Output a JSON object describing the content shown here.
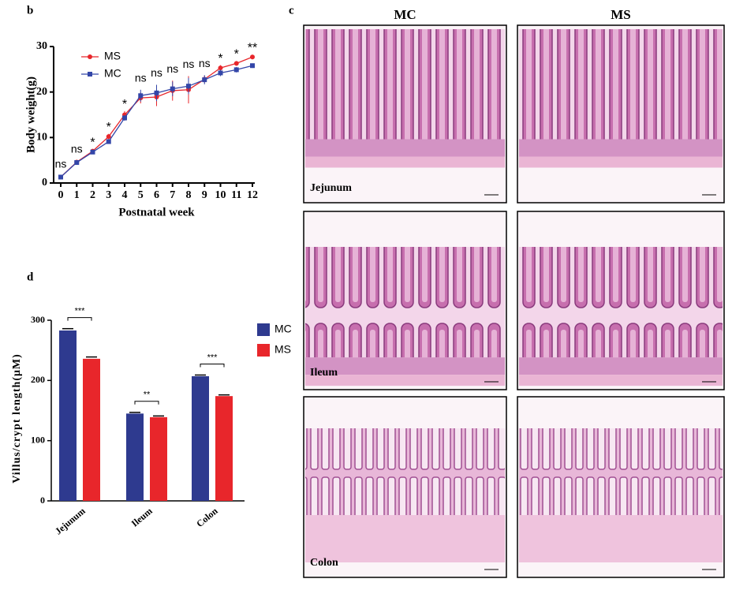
{
  "panel_labels": [
    "b",
    "c",
    "d"
  ],
  "histology": {
    "columns": [
      "MC",
      "MS"
    ],
    "rows": [
      "Jejunum",
      "Ileum",
      "Colon"
    ]
  },
  "chart_data": [
    {
      "type": "line",
      "xlabel": "Postnatal week",
      "ylabel": "Body weight(g)",
      "x": [
        0,
        1,
        2,
        3,
        4,
        5,
        6,
        7,
        8,
        9,
        10,
        11,
        12
      ],
      "xlim": [
        0,
        12
      ],
      "xticks": [
        0,
        1,
        2,
        3,
        4,
        5,
        6,
        7,
        8,
        9,
        10,
        11,
        12
      ],
      "ylim": [
        0,
        30
      ],
      "yticks": [
        0,
        10,
        20,
        30
      ],
      "legend": "upper left",
      "series": [
        {
          "name": "MS",
          "color": "#e8262b",
          "marker": "circle",
          "values": [
            1.3,
            4.6,
            7.0,
            10.2,
            15.0,
            18.7,
            18.9,
            20.3,
            20.5,
            22.8,
            25.3,
            26.3,
            27.7
          ],
          "errors": [
            0.3,
            0.3,
            0.4,
            0.6,
            0.8,
            1.2,
            2.0,
            2.2,
            3.0,
            0.8,
            0.6,
            0.5,
            0.5
          ]
        },
        {
          "name": "MC",
          "color": "#3346a8",
          "marker": "square",
          "values": [
            1.3,
            4.5,
            6.8,
            9.1,
            14.3,
            19.2,
            19.8,
            20.7,
            21.3,
            22.7,
            24.2,
            24.9,
            25.8
          ],
          "errors": [
            0.3,
            0.3,
            0.3,
            0.5,
            0.6,
            1.3,
            1.8,
            1.6,
            1.8,
            1.0,
            0.7,
            0.6,
            0.5
          ]
        }
      ],
      "annotations": [
        "ns",
        "ns",
        "*",
        "*",
        "*",
        "ns",
        "ns",
        "ns",
        "ns",
        "ns",
        "*",
        "*",
        "**"
      ]
    },
    {
      "type": "bar",
      "ylabel": "Villus/crypt length(μM)",
      "categories": [
        "Jejunum",
        "Ileum",
        "Colon"
      ],
      "ylim": [
        0,
        300
      ],
      "yticks": [
        0,
        100,
        200,
        300
      ],
      "legend": "right",
      "series": [
        {
          "name": "MC",
          "color": "#2e3a8f",
          "values": [
            283,
            145,
            207
          ],
          "errors": [
            3,
            2,
            2
          ]
        },
        {
          "name": "MS",
          "color": "#e8262b",
          "values": [
            236,
            139,
            174
          ],
          "errors": [
            3,
            2,
            2
          ]
        }
      ],
      "annotations": [
        "***",
        "**",
        "***"
      ]
    }
  ]
}
